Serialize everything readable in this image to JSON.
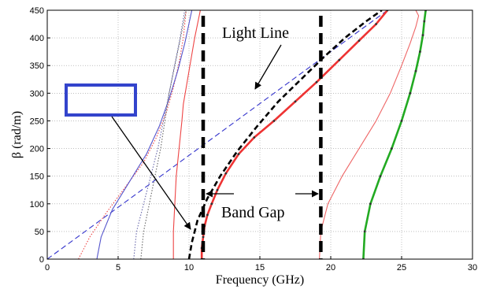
{
  "chart_data": {
    "type": "line",
    "title": "",
    "xlabel": "Frequency (GHz)",
    "ylabel": "β (rad/m)",
    "xlim": [
      0,
      30
    ],
    "ylim": [
      0,
      450
    ],
    "xticks": [
      "0",
      "5",
      "10",
      "15",
      "20",
      "25",
      "30"
    ],
    "yticks": [
      "0",
      "50",
      "100",
      "150",
      "200",
      "250",
      "300",
      "350",
      "400",
      "450"
    ],
    "grid": true,
    "legend": "none",
    "annotations": {
      "light_line": "Light Line",
      "band_gap": "Band Gap"
    },
    "band_gap_lines": [
      11.0,
      19.3
    ],
    "series": [
      {
        "color": "#3333cc",
        "style": "dashed",
        "x": [
          0,
          24.0
        ],
        "y": [
          0,
          450
        ]
      },
      {
        "color": "#ee3333",
        "style": "solid-dotted",
        "x": [
          10.9,
          10.9,
          11.0,
          11.1,
          11.3,
          11.6,
          12.0,
          12.6,
          13.5,
          14.6,
          16.0,
          17.5,
          19.0,
          20.6,
          22.0,
          23.2,
          24.0
        ],
        "y": [
          0,
          20,
          40,
          60,
          80,
          100,
          125,
          155,
          190,
          220,
          250,
          285,
          320,
          360,
          395,
          425,
          450
        ]
      },
      {
        "color": "#000000",
        "style": "dashed",
        "x": [
          10.0,
          10.2,
          10.6,
          11.3,
          12.2,
          13.4,
          14.8,
          16.3,
          17.9,
          19.5,
          21.0,
          22.5,
          23.6
        ],
        "y": [
          0,
          30,
          70,
          110,
          150,
          195,
          240,
          285,
          325,
          365,
          400,
          430,
          450
        ]
      },
      {
        "color": "#ee4444",
        "style": "solid",
        "x": [
          8.9,
          8.9,
          9.0,
          9.1,
          9.3,
          9.5,
          9.6,
          9.8,
          10.0,
          10.2,
          10.4,
          10.6,
          10.8
        ],
        "y": [
          0,
          50,
          100,
          150,
          200,
          250,
          280,
          310,
          340,
          370,
          400,
          425,
          450
        ]
      },
      {
        "color": "#ee4444",
        "style": "dotted",
        "x": [
          2.2,
          3.0,
          4.2,
          5.5,
          6.8,
          7.7,
          8.4,
          8.9,
          9.3,
          9.6,
          9.8
        ],
        "y": [
          0,
          40,
          85,
          130,
          175,
          220,
          265,
          310,
          355,
          400,
          450
        ]
      },
      {
        "color": "#5555cc",
        "style": "solid",
        "x": [
          3.5,
          3.8,
          4.6,
          5.8,
          7.0,
          7.9,
          8.6,
          9.2,
          9.7,
          10.2
        ],
        "y": [
          0,
          40,
          90,
          140,
          190,
          240,
          290,
          340,
          390,
          450
        ]
      },
      {
        "color": "#6666aa",
        "style": "dotted",
        "x": [
          6.1,
          6.3,
          6.8,
          7.3,
          7.8,
          8.2,
          8.6,
          8.9,
          9.3,
          9.7
        ],
        "y": [
          0,
          50,
          100,
          150,
          200,
          250,
          300,
          340,
          390,
          450
        ]
      },
      {
        "color": "#666666",
        "style": "dotted",
        "x": [
          6.6,
          6.8,
          7.2,
          7.6,
          8.0,
          8.3,
          8.6,
          9.0,
          9.4,
          9.8
        ],
        "y": [
          0,
          50,
          100,
          150,
          200,
          250,
          300,
          350,
          400,
          450
        ]
      },
      {
        "color": "#ee6666",
        "style": "solid",
        "x": [
          19.2,
          19.3,
          19.8,
          20.8,
          22.0,
          23.2,
          24.2,
          25.0,
          25.6,
          26.0,
          26.2,
          26.0,
          25.8
        ],
        "y": [
          0,
          50,
          100,
          150,
          200,
          250,
          300,
          350,
          390,
          420,
          440,
          450,
          450
        ]
      },
      {
        "color": "#22aa22",
        "style": "solid-dotted",
        "x": [
          22.3,
          22.4,
          22.8,
          23.5,
          24.3,
          25.0,
          25.6,
          26.0,
          26.3,
          26.5,
          26.6,
          26.7
        ],
        "y": [
          0,
          50,
          100,
          150,
          200,
          250,
          300,
          340,
          375,
          405,
          430,
          450
        ]
      }
    ]
  }
}
